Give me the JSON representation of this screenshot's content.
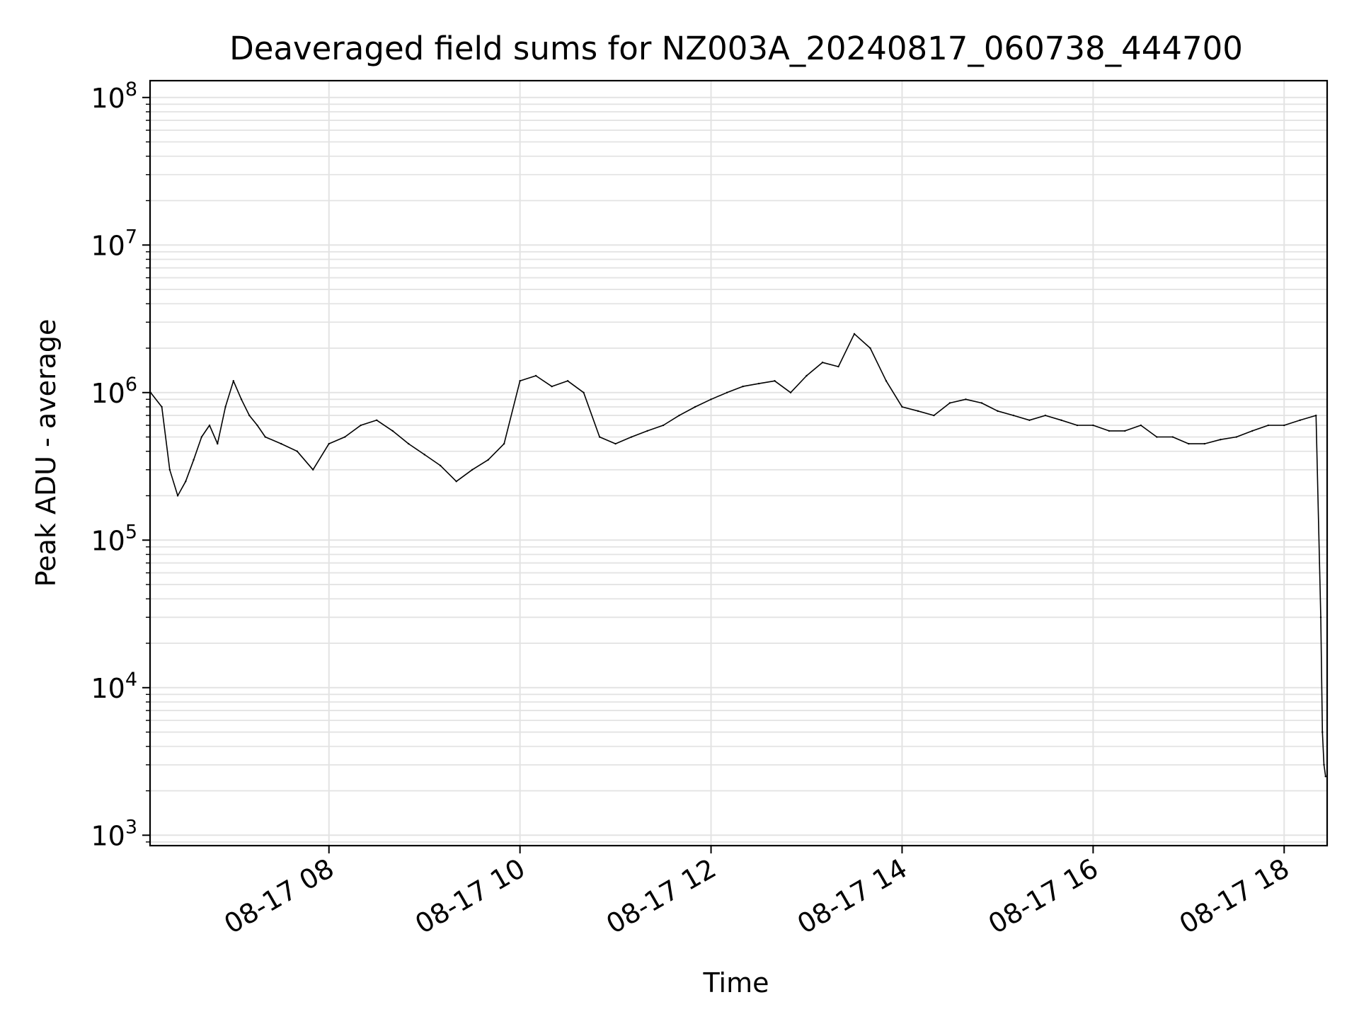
{
  "chart_data": {
    "type": "line",
    "title": "Deaveraged field sums for NZ003A_20240817_060738_444700",
    "xlabel": "Time",
    "ylabel": "Peak ADU - average",
    "y_scale": "log",
    "ylim": [
      850,
      130000000
    ],
    "xlim": [
      "2024-08-17T06:07:38",
      "2024-08-17T18:27:00"
    ],
    "x_ticks": [
      "2024-08-17T08:00",
      "2024-08-17T10:00",
      "2024-08-17T12:00",
      "2024-08-17T14:00",
      "2024-08-17T16:00",
      "2024-08-17T18:00"
    ],
    "x_tick_labels": [
      "08-17 08",
      "08-17 10",
      "08-17 12",
      "08-17 14",
      "08-17 16",
      "08-17 18"
    ],
    "y_ticks": [
      1000,
      10000,
      100000,
      1000000,
      10000000,
      100000000
    ],
    "y_tick_labels": [
      "10^3",
      "10^4",
      "10^5",
      "10^6",
      "10^7",
      "10^8"
    ],
    "grid": "on (major and minor)",
    "legend": "none",
    "line_color": "#000000",
    "grid_color": "#e3e3e3",
    "series": [
      {
        "x": [
          "2024-08-17T06:08",
          "2024-08-17T06:15",
          "2024-08-17T06:20",
          "2024-08-17T06:25",
          "2024-08-17T06:30",
          "2024-08-17T06:35",
          "2024-08-17T06:40",
          "2024-08-17T06:45",
          "2024-08-17T06:50",
          "2024-08-17T06:55",
          "2024-08-17T07:00",
          "2024-08-17T07:05",
          "2024-08-17T07:10",
          "2024-08-17T07:15",
          "2024-08-17T07:20",
          "2024-08-17T07:30",
          "2024-08-17T07:40",
          "2024-08-17T07:50",
          "2024-08-17T08:00",
          "2024-08-17T08:10",
          "2024-08-17T08:20",
          "2024-08-17T08:30",
          "2024-08-17T08:40",
          "2024-08-17T08:50",
          "2024-08-17T09:00",
          "2024-08-17T09:10",
          "2024-08-17T09:20",
          "2024-08-17T09:30",
          "2024-08-17T09:40",
          "2024-08-17T09:50",
          "2024-08-17T10:00",
          "2024-08-17T10:10",
          "2024-08-17T10:20",
          "2024-08-17T10:30",
          "2024-08-17T10:40",
          "2024-08-17T10:50",
          "2024-08-17T11:00",
          "2024-08-17T11:10",
          "2024-08-17T11:20",
          "2024-08-17T11:30",
          "2024-08-17T11:40",
          "2024-08-17T11:50",
          "2024-08-17T12:00",
          "2024-08-17T12:10",
          "2024-08-17T12:20",
          "2024-08-17T12:30",
          "2024-08-17T12:40",
          "2024-08-17T12:50",
          "2024-08-17T13:00",
          "2024-08-17T13:10",
          "2024-08-17T13:20",
          "2024-08-17T13:30",
          "2024-08-17T13:40",
          "2024-08-17T13:50",
          "2024-08-17T14:00",
          "2024-08-17T14:10",
          "2024-08-17T14:20",
          "2024-08-17T14:30",
          "2024-08-17T14:40",
          "2024-08-17T14:50",
          "2024-08-17T15:00",
          "2024-08-17T15:10",
          "2024-08-17T15:20",
          "2024-08-17T15:30",
          "2024-08-17T15:40",
          "2024-08-17T15:50",
          "2024-08-17T16:00",
          "2024-08-17T16:10",
          "2024-08-17T16:20",
          "2024-08-17T16:30",
          "2024-08-17T16:40",
          "2024-08-17T16:50",
          "2024-08-17T17:00",
          "2024-08-17T17:10",
          "2024-08-17T17:20",
          "2024-08-17T17:30",
          "2024-08-17T17:40",
          "2024-08-17T17:50",
          "2024-08-17T18:00",
          "2024-08-17T18:10",
          "2024-08-17T18:20",
          "2024-08-17T18:23",
          "2024-08-17T18:24",
          "2024-08-17T18:25",
          "2024-08-17T18:26"
        ],
        "y": [
          1000000,
          800000,
          300000,
          200000,
          250000,
          350000,
          500000,
          600000,
          450000,
          800000,
          1200000,
          900000,
          700000,
          600000,
          500000,
          450000,
          400000,
          300000,
          450000,
          500000,
          600000,
          650000,
          550000,
          450000,
          380000,
          320000,
          250000,
          300000,
          350000,
          450000,
          1200000,
          1300000,
          1100000,
          1200000,
          1000000,
          500000,
          450000,
          500000,
          550000,
          600000,
          700000,
          800000,
          900000,
          1000000,
          1100000,
          1150000,
          1200000,
          1000000,
          1300000,
          1600000,
          1500000,
          2500000,
          2000000,
          1200000,
          800000,
          750000,
          700000,
          850000,
          900000,
          850000,
          750000,
          700000,
          650000,
          700000,
          650000,
          600000,
          600000,
          550000,
          550000,
          600000,
          500000,
          500000,
          450000,
          450000,
          480000,
          500000,
          550000,
          600000,
          600000,
          650000,
          700000,
          30000,
          5000,
          3000,
          2500
        ]
      }
    ]
  }
}
